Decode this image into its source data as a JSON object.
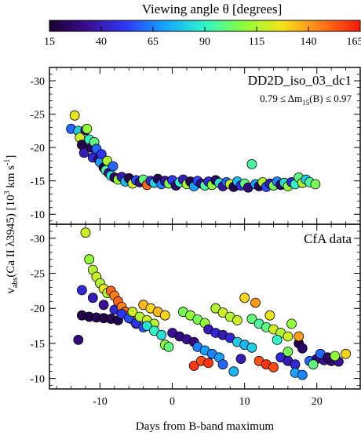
{
  "colorbar": {
    "title": "Viewing angle θ  [degrees]",
    "ticks": [
      15,
      40,
      65,
      90,
      115,
      140,
      165
    ],
    "range": [
      15,
      165
    ],
    "colormap": [
      "#1a0033",
      "#3b0d8f",
      "#2d3bff",
      "#14a8ff",
      "#2ff5c8",
      "#8cff3a",
      "#f7e21b",
      "#ff7a1a",
      "#ff1a0d"
    ]
  },
  "xaxis": {
    "label": "Days from B-band maximum",
    "range": [
      -17,
      26
    ],
    "ticks": [
      -10,
      0,
      10,
      20
    ]
  },
  "yaxis": {
    "label_main": "v",
    "label_sub": "abs",
    "label_rest": "(Ca II λ3945)  [10",
    "label_sup": "3",
    "label_end": " km s",
    "label_sup2": "-1",
    "label_close": "]"
  },
  "chart_data": [
    {
      "type": "scatter",
      "panel": "top",
      "title": "DD2D_iso_03_dc1",
      "subtitle": "0.79 ≤ Δm",
      "subtitle_sub": "15",
      "subtitle_tail": "(B) ≤ 0.97",
      "ylim": [
        -8.5,
        -32
      ],
      "yticks": [
        -10,
        -15,
        -20,
        -25,
        -30
      ],
      "points": [
        [
          -14,
          -22.8,
          60
        ],
        [
          -13.5,
          -24.8,
          125
        ],
        [
          -13,
          -22.5,
          80
        ],
        [
          -12.8,
          -21.5,
          120
        ],
        [
          -12.5,
          -20.4,
          20
        ],
        [
          -12.2,
          -19.2,
          40
        ],
        [
          -12,
          -22.6,
          35
        ],
        [
          -11.8,
          -22.8,
          110
        ],
        [
          -11.5,
          -21.2,
          90
        ],
        [
          -11.2,
          -20.0,
          25
        ],
        [
          -11,
          -18.5,
          45
        ],
        [
          -10.8,
          -20.8,
          100
        ],
        [
          -10.5,
          -19.8,
          60
        ],
        [
          -10.2,
          -18.2,
          30
        ],
        [
          -10,
          -17.8,
          70
        ],
        [
          -9.8,
          -19.0,
          50
        ],
        [
          -9.5,
          -17.0,
          20
        ],
        [
          -9.2,
          -16.6,
          95
        ],
        [
          -9,
          -18.0,
          115
        ],
        [
          -8.8,
          -16.2,
          35
        ],
        [
          -8.5,
          -15.8,
          85
        ],
        [
          -8.2,
          -17.2,
          60
        ],
        [
          -8,
          -15.5,
          25
        ],
        [
          -7.5,
          -15.2,
          110
        ],
        [
          -7,
          -15.6,
          40
        ],
        [
          -6.5,
          -14.9,
          75
        ],
        [
          -6,
          -15.4,
          20
        ],
        [
          -5.5,
          -14.6,
          120
        ],
        [
          -5,
          -15.1,
          55
        ],
        [
          -4.5,
          -14.8,
          30
        ],
        [
          -4,
          -15.2,
          100
        ],
        [
          -3.5,
          -14.4,
          150
        ],
        [
          -3,
          -15.0,
          45
        ],
        [
          -2.5,
          -14.7,
          80
        ],
        [
          -2,
          -15.3,
          22
        ],
        [
          -1.5,
          -14.5,
          65
        ],
        [
          -1,
          -15.0,
          35
        ],
        [
          -0.5,
          -14.6,
          105
        ],
        [
          0,
          -15.1,
          50
        ],
        [
          0.5,
          -14.3,
          28
        ],
        [
          1,
          -14.8,
          90
        ],
        [
          1.5,
          -15.2,
          40
        ],
        [
          2,
          -14.5,
          115
        ],
        [
          2.5,
          -14.9,
          20
        ],
        [
          3,
          -14.2,
          70
        ],
        [
          3.5,
          -15.0,
          55
        ],
        [
          4,
          -14.6,
          32
        ],
        [
          4.5,
          -14.3,
          95
        ],
        [
          5,
          -14.9,
          45
        ],
        [
          5.5,
          -14.4,
          110
        ],
        [
          6,
          -15.1,
          25
        ],
        [
          6.5,
          -14.7,
          85
        ],
        [
          7,
          -14.2,
          38
        ],
        [
          7.5,
          -14.8,
          60
        ],
        [
          8,
          -14.5,
          120
        ],
        [
          8.5,
          -14.1,
          20
        ],
        [
          9,
          -14.9,
          75
        ],
        [
          9.5,
          -14.3,
          48
        ],
        [
          10,
          -14.6,
          100
        ],
        [
          10.5,
          -14.0,
          30
        ],
        [
          11,
          -17.5,
          95
        ],
        [
          11.5,
          -14.5,
          70
        ],
        [
          12,
          -14.2,
          22
        ],
        [
          12.5,
          -14.8,
          115
        ],
        [
          13,
          -14.1,
          55
        ],
        [
          13.5,
          -14.6,
          40
        ],
        [
          14,
          -14.3,
          105
        ],
        [
          14.5,
          -14.9,
          65
        ],
        [
          15,
          -14.4,
          28
        ],
        [
          15.5,
          -14.7,
          85
        ],
        [
          16,
          -14.2,
          110
        ],
        [
          16.5,
          -14.8,
          45
        ],
        [
          17,
          -14.5,
          90
        ],
        [
          17.5,
          -15.5,
          100
        ],
        [
          18,
          -14.7,
          115
        ],
        [
          18.5,
          -15.2,
          80
        ],
        [
          19,
          -14.8,
          95
        ],
        [
          19.8,
          -14.5,
          105
        ]
      ]
    },
    {
      "type": "scatter",
      "panel": "bottom",
      "title": "CfA data",
      "ylim": [
        -8.5,
        -32
      ],
      "yticks": [
        -10,
        -15,
        -20,
        -25,
        -30
      ],
      "points": [
        [
          -12,
          -30.8,
          120
        ],
        [
          -11.5,
          -27.0,
          110
        ],
        [
          -11,
          -25.5,
          115
        ],
        [
          -10.5,
          -24.5,
          120
        ],
        [
          -10,
          -23.6,
          115
        ],
        [
          -9.5,
          -22.8,
          125
        ],
        [
          -9,
          -22.2,
          115
        ],
        [
          -12.5,
          -22.6,
          45
        ],
        [
          -11,
          -21.5,
          40
        ],
        [
          -9.5,
          -20.5,
          35
        ],
        [
          -8,
          -19.8,
          45
        ],
        [
          -8.5,
          -22.5,
          150
        ],
        [
          -8,
          -21.8,
          145
        ],
        [
          -7.5,
          -21.0,
          150
        ],
        [
          -12.5,
          -19.0,
          20
        ],
        [
          -11.5,
          -18.8,
          20
        ],
        [
          -10.5,
          -18.7,
          22
        ],
        [
          -9.5,
          -18.6,
          20
        ],
        [
          -8.5,
          -18.5,
          22
        ],
        [
          -7.5,
          -18.3,
          20
        ],
        [
          -7,
          -20.2,
          145
        ],
        [
          -6.5,
          -19.5,
          150
        ],
        [
          -6,
          -18.9,
          140
        ],
        [
          -5.5,
          -18.4,
          150
        ],
        [
          -5,
          -17.8,
          145
        ],
        [
          -7,
          -19.2,
          50
        ],
        [
          -6,
          -18.6,
          55
        ],
        [
          -5,
          -17.9,
          50
        ],
        [
          -4,
          -17.3,
          55
        ],
        [
          -5.5,
          -19.5,
          120
        ],
        [
          -4.5,
          -18.8,
          115
        ],
        [
          -3.5,
          -18.3,
          120
        ],
        [
          -2.5,
          -17.8,
          115
        ],
        [
          -4,
          -20.5,
          135
        ],
        [
          -3,
          -20.0,
          130
        ],
        [
          -2,
          -19.5,
          135
        ],
        [
          -1,
          -19.0,
          130
        ],
        [
          -3.5,
          -17.5,
          85
        ],
        [
          -2.5,
          -16.8,
          90
        ],
        [
          -1.5,
          -16.2,
          85
        ],
        [
          -1,
          -14.8,
          110
        ],
        [
          -0.5,
          -14.5,
          100
        ],
        [
          0,
          -16.5,
          35
        ],
        [
          1,
          -16.0,
          30
        ],
        [
          2,
          -15.6,
          35
        ],
        [
          3,
          -15.2,
          30
        ],
        [
          1.5,
          -19.5,
          105
        ],
        [
          2.5,
          -19.0,
          110
        ],
        [
          3.5,
          -18.4,
          105
        ],
        [
          4.5,
          -17.9,
          110
        ],
        [
          3,
          -11.8,
          160
        ],
        [
          4,
          -12.5,
          155
        ],
        [
          5,
          -12.2,
          160
        ],
        [
          3.5,
          -14.5,
          65
        ],
        [
          4.5,
          -14.0,
          70
        ],
        [
          5.5,
          -13.5,
          65
        ],
        [
          6.5,
          -13.0,
          70
        ],
        [
          5,
          -17.0,
          40
        ],
        [
          6,
          -16.5,
          45
        ],
        [
          7,
          -16.2,
          40
        ],
        [
          8,
          -15.8,
          45
        ],
        [
          6,
          -20.0,
          115
        ],
        [
          7,
          -19.4,
          120
        ],
        [
          8,
          -18.8,
          115
        ],
        [
          9,
          -18.3,
          120
        ],
        [
          9,
          -15.2,
          80
        ],
        [
          10,
          -14.8,
          75
        ],
        [
          11,
          -14.4,
          80
        ],
        [
          10,
          -21.5,
          130
        ],
        [
          11,
          -18.5,
          100
        ],
        [
          12,
          -17.8,
          95
        ],
        [
          13,
          -17.3,
          100
        ],
        [
          12,
          -12.5,
          155
        ],
        [
          13,
          -12.0,
          160
        ],
        [
          14,
          -11.6,
          155
        ],
        [
          14,
          -17.0,
          120
        ],
        [
          15,
          -16.5,
          115
        ],
        [
          16,
          -16.0,
          120
        ],
        [
          15,
          -13.0,
          45
        ],
        [
          16,
          -12.5,
          40
        ],
        [
          17,
          -12.0,
          45
        ],
        [
          16.5,
          -17.8,
          110
        ],
        [
          17.5,
          -15.0,
          20
        ],
        [
          18,
          -14.3,
          25
        ],
        [
          17,
          -10.8,
          70
        ],
        [
          18,
          -10.5,
          65
        ],
        [
          19,
          -12.5,
          60
        ],
        [
          20,
          -12.8,
          30
        ],
        [
          21,
          -12.6,
          35
        ],
        [
          22,
          -12.5,
          30
        ],
        [
          23,
          -12.4,
          35
        ],
        [
          24,
          -13.5,
          130
        ],
        [
          -13,
          -15.5,
          30
        ],
        [
          7,
          -12.0,
          60
        ],
        [
          8.5,
          -11.0,
          75
        ],
        [
          9.5,
          -12.8,
          40
        ],
        [
          11.5,
          -20.8,
          140
        ],
        [
          13.5,
          -19.0,
          125
        ],
        [
          14.5,
          -15.5,
          90
        ],
        [
          16,
          -13.8,
          105
        ],
        [
          17.5,
          -16.0,
          140
        ],
        [
          19.5,
          -12.0,
          100
        ],
        [
          20.5,
          -13.5,
          60
        ],
        [
          21.5,
          -13.0,
          25
        ],
        [
          22.5,
          -13.2,
          110
        ]
      ]
    }
  ]
}
